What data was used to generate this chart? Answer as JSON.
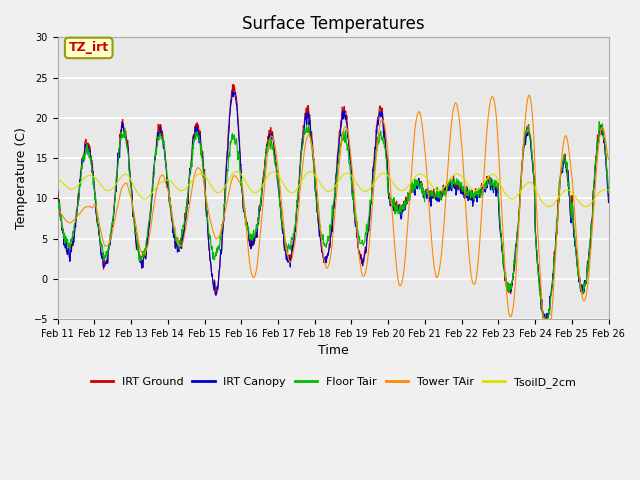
{
  "title": "Surface Temperatures",
  "xlabel": "Time",
  "ylabel": "Temperature (C)",
  "ylim": [
    -5,
    30
  ],
  "xlim": [
    0,
    360
  ],
  "x_tick_labels": [
    "Feb 11",
    "Feb 12",
    "Feb 13",
    "Feb 14",
    "Feb 15",
    "Feb 16",
    "Feb 17",
    "Feb 18",
    "Feb 19",
    "Feb 20",
    "Feb 21",
    "Feb 22",
    "Feb 23",
    "Feb 24",
    "Feb 25",
    "Feb 26"
  ],
  "x_tick_positions": [
    0,
    24,
    48,
    72,
    96,
    120,
    144,
    168,
    192,
    216,
    240,
    264,
    288,
    312,
    336,
    360
  ],
  "series_colors": {
    "IRT Ground": "#cc0000",
    "IRT Canopy": "#0000cc",
    "Floor Tair": "#00bb00",
    "Tower TAir": "#ff8800",
    "TsoilD_2cm": "#dddd00"
  },
  "annotation_text": "TZ_irt",
  "annotation_color": "#cc0000",
  "annotation_bg": "#ffffcc",
  "annotation_edge": "#999900",
  "fig_bg": "#f0f0f0",
  "plot_bg": "#e8e8e8",
  "grid_color": "#ffffff",
  "title_fontsize": 12,
  "axis_fontsize": 9,
  "tick_fontsize": 7,
  "legend_fontsize": 8
}
